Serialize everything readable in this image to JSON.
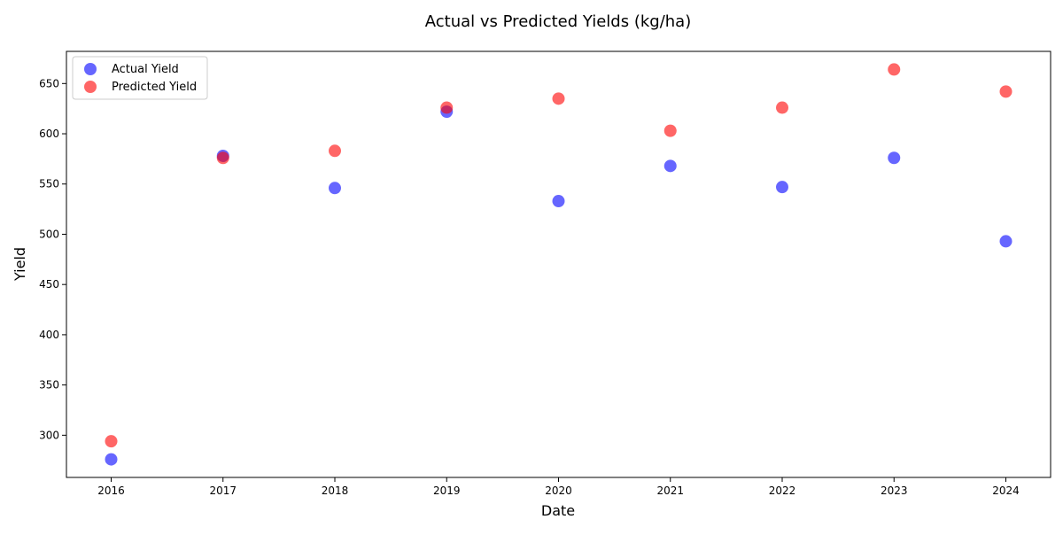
{
  "chart_data": {
    "type": "scatter",
    "title": "Actual vs Predicted Yields (kg/ha)",
    "xlabel": "Date",
    "ylabel": "Yield",
    "x": [
      2016,
      2017,
      2018,
      2019,
      2020,
      2021,
      2022,
      2023,
      2024
    ],
    "xlim": [
      2015.6,
      2024.4
    ],
    "ylim": [
      258,
      682
    ],
    "xticks": [
      2016,
      2017,
      2018,
      2019,
      2020,
      2021,
      2022,
      2023,
      2024
    ],
    "yticks": [
      300,
      350,
      400,
      450,
      500,
      550,
      600,
      650
    ],
    "grid": false,
    "legend_position": "upper-left",
    "series": [
      {
        "name": "Actual Yield",
        "color": "#0000ff",
        "values": [
          276,
          578,
          546,
          622,
          533,
          568,
          547,
          576,
          493
        ]
      },
      {
        "name": "Predicted Yield",
        "color": "#ff0000",
        "values": [
          294,
          576,
          583,
          626,
          635,
          603,
          626,
          664,
          642
        ]
      }
    ]
  }
}
